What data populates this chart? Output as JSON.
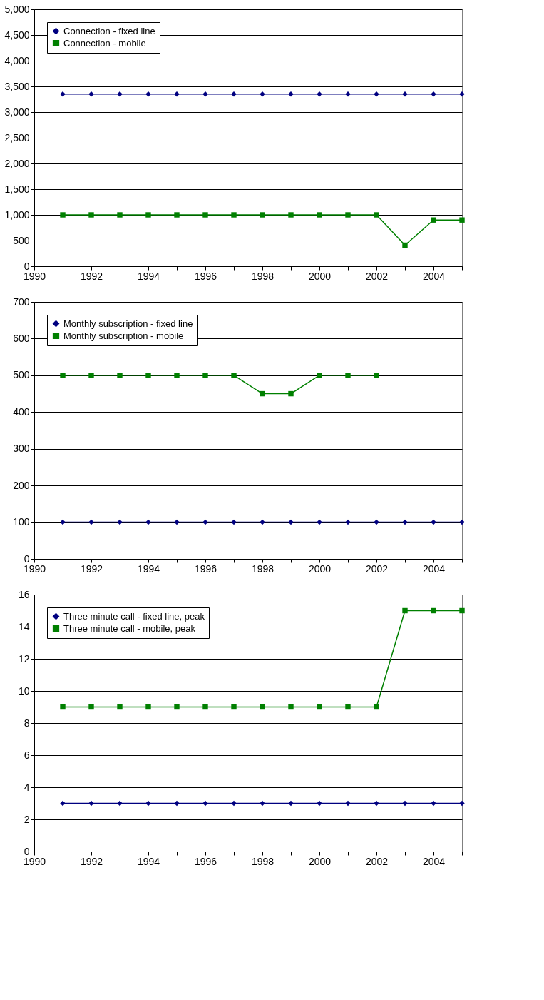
{
  "chart_data": [
    {
      "type": "line",
      "x": [
        1991,
        1992,
        1993,
        1994,
        1995,
        1996,
        1997,
        1998,
        1999,
        2000,
        2001,
        2002,
        2003,
        2004,
        2005
      ],
      "series": [
        {
          "name": "Connection - fixed line",
          "color": "#000080",
          "marker": "diamond",
          "values": [
            3350,
            3350,
            3350,
            3350,
            3350,
            3350,
            3350,
            3350,
            3350,
            3350,
            3350,
            3350,
            3350,
            3350,
            3350
          ]
        },
        {
          "name": "Connection - mobile",
          "color": "#008000",
          "marker": "square",
          "values": [
            1000,
            1000,
            1000,
            1000,
            1000,
            1000,
            1000,
            1000,
            1000,
            1000,
            1000,
            1000,
            410,
            900,
            900
          ]
        }
      ],
      "xlim": [
        1990,
        2005
      ],
      "xticks": [
        1990,
        {
          "value": 1991,
          "label": null
        },
        1992,
        {
          "value": 1993,
          "label": null
        },
        1994,
        {
          "value": 1995,
          "label": null
        },
        1996,
        {
          "value": 1997,
          "label": null
        },
        1998,
        {
          "value": 1999,
          "label": null
        },
        2000,
        {
          "value": 2001,
          "label": null
        },
        2002,
        {
          "value": 2003,
          "label": null
        },
        2004,
        {
          "value": 2005,
          "label": null
        }
      ],
      "ylim": [
        0,
        5000
      ],
      "yticks": [
        0,
        500,
        {
          "value": 1000,
          "label": "1,000"
        },
        {
          "value": 1500,
          "label": "1,500"
        },
        {
          "value": 2000,
          "label": "2,000"
        },
        {
          "value": 2500,
          "label": "2,500"
        },
        {
          "value": 3000,
          "label": "3,000"
        },
        {
          "value": 3500,
          "label": "3,500"
        },
        {
          "value": 4000,
          "label": "4,000"
        },
        {
          "value": 4500,
          "label": "4,500"
        },
        {
          "value": 5000,
          "label": "5,000"
        }
      ],
      "grid": "y",
      "legend": "top left",
      "line_style": "solid"
    },
    {
      "type": "line",
      "x": [
        1991,
        1992,
        1993,
        1994,
        1995,
        1996,
        1997,
        1998,
        1999,
        2000,
        2001,
        2002,
        2003,
        2004,
        2005
      ],
      "series": [
        {
          "name": "Monthly subscription - fixed line",
          "color": "#000080",
          "marker": "diamond",
          "values": [
            100,
            100,
            100,
            100,
            100,
            100,
            100,
            100,
            100,
            100,
            100,
            100,
            100,
            100,
            100
          ]
        },
        {
          "name": "Monthly subscription - mobile",
          "color": "#008000",
          "marker": "square",
          "values": [
            500,
            500,
            500,
            500,
            500,
            500,
            500,
            450,
            450,
            500,
            500,
            500,
            null,
            null,
            null
          ]
        }
      ],
      "xlim": [
        1990,
        2005
      ],
      "xticks": [
        1990,
        {
          "value": 1991,
          "label": null
        },
        1992,
        {
          "value": 1993,
          "label": null
        },
        1994,
        {
          "value": 1995,
          "label": null
        },
        1996,
        {
          "value": 1997,
          "label": null
        },
        1998,
        {
          "value": 1999,
          "label": null
        },
        2000,
        {
          "value": 2001,
          "label": null
        },
        2002,
        {
          "value": 2003,
          "label": null
        },
        2004,
        {
          "value": 2005,
          "label": null
        }
      ],
      "ylim": [
        0,
        700
      ],
      "yticks": [
        0,
        100,
        200,
        300,
        400,
        500,
        600,
        700
      ],
      "grid": "y",
      "legend": "top left",
      "line_style": "solid"
    },
    {
      "type": "line",
      "x": [
        1991,
        1992,
        1993,
        1994,
        1995,
        1996,
        1997,
        1998,
        1999,
        2000,
        2001,
        2002,
        2003,
        2004,
        2005
      ],
      "series": [
        {
          "name": "Three minute call - fixed line, peak",
          "color": "#000080",
          "marker": "diamond",
          "values": [
            3,
            3,
            3,
            3,
            3,
            3,
            3,
            3,
            3,
            3,
            3,
            3,
            3,
            3,
            3
          ]
        },
        {
          "name": "Three minute call - mobile, peak",
          "color": "#008000",
          "marker": "square",
          "values": [
            9,
            9,
            9,
            9,
            9,
            9,
            9,
            9,
            9,
            9,
            9,
            9,
            15,
            15,
            15
          ]
        }
      ],
      "xlim": [
        1990,
        2005
      ],
      "xticks": [
        1990,
        {
          "value": 1991,
          "label": null
        },
        1992,
        {
          "value": 1993,
          "label": null
        },
        1994,
        {
          "value": 1995,
          "label": null
        },
        1996,
        {
          "value": 1997,
          "label": null
        },
        1998,
        {
          "value": 1999,
          "label": null
        },
        2000,
        {
          "value": 2001,
          "label": null
        },
        2002,
        {
          "value": 2003,
          "label": null
        },
        2004,
        {
          "value": 2005,
          "label": null
        }
      ],
      "ylim": [
        0,
        16
      ],
      "yticks": [
        0,
        2,
        4,
        6,
        8,
        10,
        12,
        14,
        16
      ],
      "grid": "y",
      "legend": "top left",
      "line_style": "solid"
    }
  ]
}
